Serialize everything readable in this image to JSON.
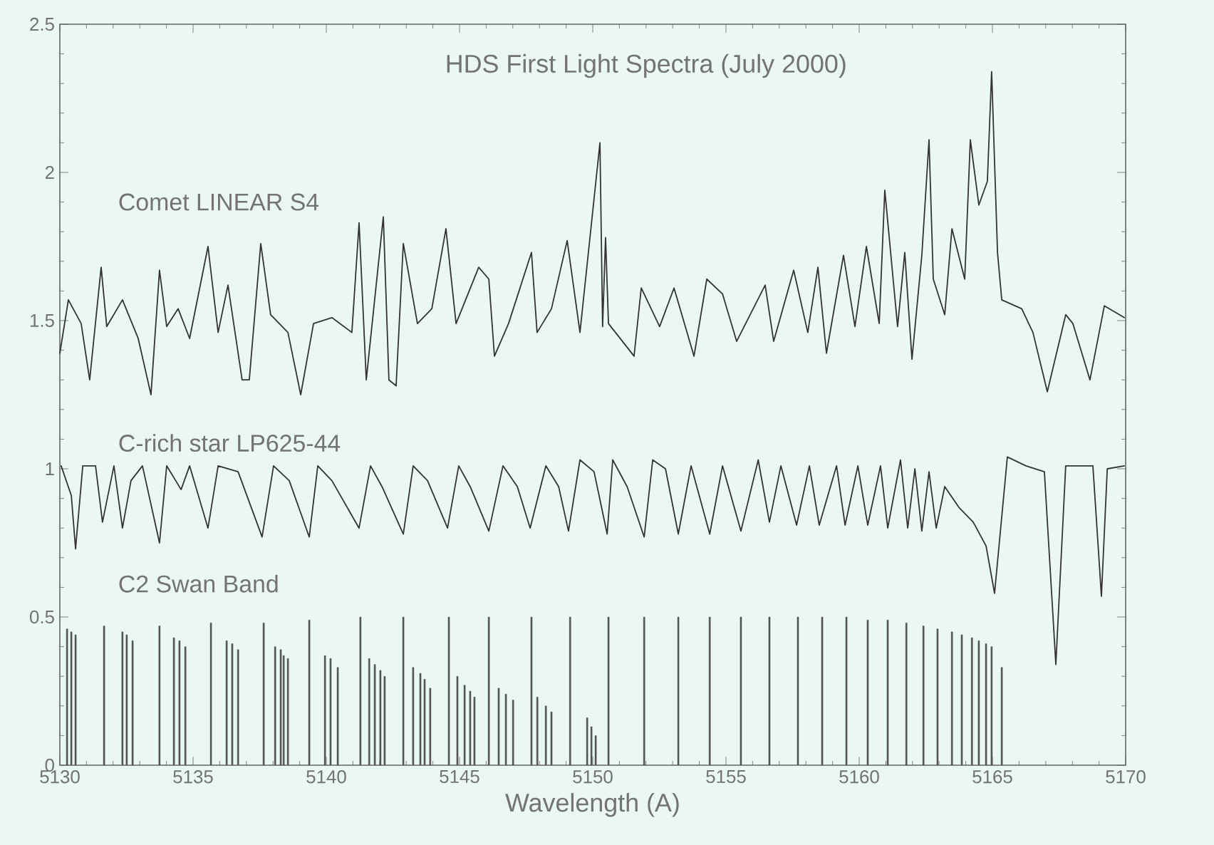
{
  "chart_data": {
    "type": "line",
    "title": "HDS First Light Spectra (July 2000)",
    "xlabel": "Wavelength (A)",
    "xlim": [
      5130,
      5170
    ],
    "ylim": [
      0,
      2.5
    ],
    "xticks": [
      5130,
      5135,
      5140,
      5145,
      5150,
      5155,
      5160,
      5165,
      5170
    ],
    "yticks": [
      0,
      0.5,
      1,
      1.5,
      2,
      2.5
    ],
    "line_style": "solid",
    "series": [
      {
        "name": "Comet LINEAR S4",
        "color": "#333333",
        "x": [
          5130.0,
          5130.32,
          5130.8,
          5131.12,
          5131.55,
          5131.76,
          5132.35,
          5132.94,
          5133.42,
          5133.74,
          5134.01,
          5134.44,
          5134.87,
          5135.56,
          5135.94,
          5136.31,
          5136.84,
          5137.11,
          5137.54,
          5137.91,
          5138.56,
          5139.04,
          5139.52,
          5140.21,
          5140.96,
          5141.23,
          5141.5,
          5142.14,
          5142.35,
          5142.62,
          5142.89,
          5143.42,
          5143.96,
          5144.49,
          5144.87,
          5145.72,
          5146.1,
          5146.31,
          5146.84,
          5147.7,
          5147.91,
          5148.45,
          5149.04,
          5149.52,
          5150.27,
          5150.37,
          5150.48,
          5150.59,
          5151.55,
          5151.82,
          5152.51,
          5153.05,
          5153.8,
          5154.28,
          5154.87,
          5155.4,
          5156.47,
          5156.79,
          5157.54,
          5158.07,
          5158.45,
          5158.77,
          5159.41,
          5159.84,
          5160.27,
          5160.75,
          5160.96,
          5161.44,
          5161.71,
          5161.98,
          5162.35,
          5162.62,
          5162.78,
          5163.21,
          5163.48,
          5163.96,
          5164.17,
          5164.49,
          5164.81,
          5164.97,
          5165.19,
          5165.35,
          5166.1,
          5166.52,
          5167.06,
          5167.75,
          5168.02,
          5168.66,
          5169.2,
          5169.95
        ],
        "values": [
          1.39,
          1.57,
          1.49,
          1.3,
          1.68,
          1.48,
          1.57,
          1.44,
          1.25,
          1.67,
          1.48,
          1.54,
          1.44,
          1.75,
          1.46,
          1.62,
          1.3,
          1.3,
          1.76,
          1.52,
          1.46,
          1.25,
          1.49,
          1.51,
          1.46,
          1.83,
          1.3,
          1.85,
          1.3,
          1.28,
          1.76,
          1.49,
          1.54,
          1.81,
          1.49,
          1.68,
          1.64,
          1.38,
          1.49,
          1.73,
          1.46,
          1.54,
          1.77,
          1.46,
          2.1,
          1.48,
          1.78,
          1.49,
          1.38,
          1.61,
          1.48,
          1.61,
          1.38,
          1.64,
          1.59,
          1.43,
          1.62,
          1.43,
          1.67,
          1.46,
          1.68,
          1.39,
          1.72,
          1.48,
          1.75,
          1.49,
          1.94,
          1.48,
          1.73,
          1.37,
          1.72,
          2.11,
          1.64,
          1.52,
          1.81,
          1.64,
          2.11,
          1.89,
          1.97,
          2.34,
          1.73,
          1.57,
          1.54,
          1.46,
          1.26,
          1.52,
          1.49,
          1.3,
          1.55,
          1.51
        ]
      },
      {
        "name": "C-rich star LP625-44",
        "color": "#333333",
        "x": [
          5130.05,
          5130.43,
          5130.59,
          5130.86,
          5131.34,
          5131.6,
          5132.03,
          5132.35,
          5132.67,
          5133.1,
          5133.74,
          5134.01,
          5134.55,
          5134.87,
          5135.56,
          5135.94,
          5136.69,
          5137.59,
          5138.02,
          5138.61,
          5139.36,
          5139.68,
          5140.21,
          5141.23,
          5141.66,
          5142.09,
          5142.89,
          5143.26,
          5143.8,
          5144.55,
          5144.97,
          5145.4,
          5146.1,
          5146.63,
          5147.17,
          5147.65,
          5148.24,
          5148.72,
          5149.09,
          5149.52,
          5150.05,
          5150.54,
          5150.75,
          5151.29,
          5151.93,
          5152.25,
          5152.73,
          5153.21,
          5153.69,
          5154.39,
          5154.87,
          5155.56,
          5156.21,
          5156.63,
          5157.06,
          5157.65,
          5158.13,
          5158.5,
          5159.15,
          5159.47,
          5159.95,
          5160.32,
          5160.8,
          5161.07,
          5161.55,
          5161.82,
          5162.09,
          5162.35,
          5162.62,
          5162.89,
          5163.21,
          5163.74,
          5164.28,
          5164.76,
          5165.08,
          5165.56,
          5166.26,
          5166.95,
          5167.38,
          5167.75,
          5168.77,
          5169.09,
          5169.31,
          5169.95
        ],
        "values": [
          1.01,
          0.91,
          0.73,
          1.01,
          1.01,
          0.82,
          1.01,
          0.8,
          0.96,
          1.01,
          0.75,
          1.01,
          0.93,
          1.01,
          0.8,
          1.01,
          0.99,
          0.77,
          1.01,
          0.96,
          0.77,
          1.01,
          0.96,
          0.8,
          1.01,
          0.94,
          0.78,
          1.01,
          0.96,
          0.8,
          1.01,
          0.94,
          0.79,
          1.01,
          0.94,
          0.8,
          1.01,
          0.94,
          0.79,
          1.03,
          0.99,
          0.78,
          1.03,
          0.94,
          0.77,
          1.03,
          1.0,
          0.78,
          1.01,
          0.78,
          1.01,
          0.79,
          1.03,
          0.82,
          1.01,
          0.81,
          1.01,
          0.81,
          1.01,
          0.81,
          1.01,
          0.81,
          1.01,
          0.8,
          1.03,
          0.8,
          1.0,
          0.79,
          0.99,
          0.8,
          0.94,
          0.87,
          0.82,
          0.74,
          0.58,
          1.04,
          1.01,
          0.99,
          0.34,
          1.01,
          1.01,
          0.57,
          1.0,
          1.01
        ]
      },
      {
        "name": "C2 Swan Band",
        "type": "bar",
        "color": "#555555",
        "x": [
          5130.27,
          5130.43,
          5130.59,
          5131.66,
          5132.35,
          5132.51,
          5132.73,
          5133.74,
          5134.28,
          5134.49,
          5134.71,
          5135.67,
          5136.26,
          5136.47,
          5136.69,
          5137.65,
          5138.08,
          5138.29,
          5138.4,
          5138.56,
          5139.36,
          5139.95,
          5140.16,
          5140.43,
          5141.28,
          5141.61,
          5141.82,
          5142.03,
          5142.19,
          5142.89,
          5143.26,
          5143.53,
          5143.69,
          5143.9,
          5144.6,
          5144.92,
          5145.19,
          5145.4,
          5145.56,
          5146.1,
          5146.47,
          5146.74,
          5147.01,
          5147.7,
          5147.92,
          5148.24,
          5148.45,
          5149.15,
          5149.79,
          5149.95,
          5150.11,
          5150.59,
          5151.93,
          5153.21,
          5154.39,
          5155.56,
          5156.63,
          5157.7,
          5158.61,
          5159.52,
          5160.32,
          5161.07,
          5161.77,
          5162.41,
          5162.94,
          5163.48,
          5163.85,
          5164.23,
          5164.49,
          5164.76,
          5164.97,
          5165.35
        ],
        "values": [
          0.46,
          0.45,
          0.44,
          0.47,
          0.45,
          0.44,
          0.42,
          0.47,
          0.43,
          0.42,
          0.4,
          0.48,
          0.42,
          0.41,
          0.39,
          0.48,
          0.4,
          0.39,
          0.37,
          0.36,
          0.49,
          0.37,
          0.36,
          0.33,
          0.5,
          0.36,
          0.34,
          0.32,
          0.3,
          0.5,
          0.33,
          0.31,
          0.29,
          0.26,
          0.5,
          0.3,
          0.27,
          0.25,
          0.23,
          0.5,
          0.26,
          0.24,
          0.22,
          0.5,
          0.23,
          0.2,
          0.18,
          0.5,
          0.16,
          0.13,
          0.1,
          0.5,
          0.5,
          0.5,
          0.5,
          0.5,
          0.5,
          0.5,
          0.5,
          0.5,
          0.49,
          0.49,
          0.48,
          0.47,
          0.46,
          0.45,
          0.44,
          0.43,
          0.42,
          0.41,
          0.4,
          0.33
        ]
      }
    ]
  }
}
